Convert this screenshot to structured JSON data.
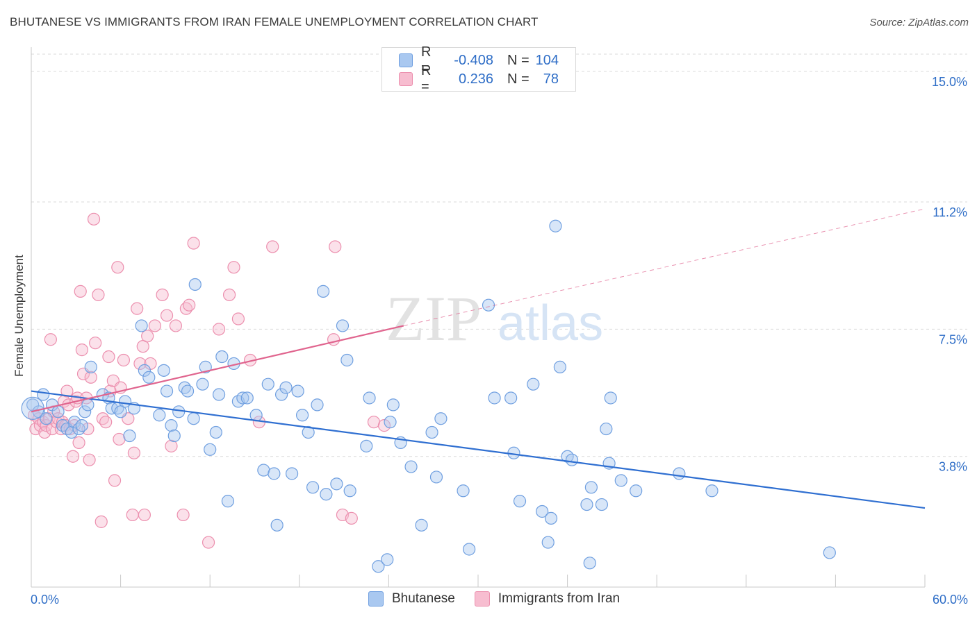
{
  "title": "BHUTANESE VS IMMIGRANTS FROM IRAN FEMALE UNEMPLOYMENT CORRELATION CHART",
  "source": "Source: ZipAtlas.com",
  "watermark": {
    "zip": "ZIP",
    "atlas": "atlas"
  },
  "legend": {
    "rows": [
      {
        "r_label": "R =",
        "r_value": "-0.408",
        "n_label": "N =",
        "n_value": "104"
      },
      {
        "r_label": "R =",
        "r_value": "0.236",
        "n_label": "N =",
        "n_value": "78"
      }
    ]
  },
  "bottom_legend": [
    "Bhutanese",
    "Immigrants from Iran"
  ],
  "colors": {
    "blue_fill": "#a9c8f0",
    "blue_stroke": "#6f9fe0",
    "blue_line": "#2f6fd1",
    "pink_fill": "#f7bdd0",
    "pink_stroke": "#ec8fae",
    "pink_line": "#e0648e",
    "tick_text": "#2f6ec7",
    "grid": "#d9d9d9"
  },
  "chart_data": {
    "type": "scatter",
    "title": "BHUTANESE VS IMMIGRANTS FROM IRAN FEMALE UNEMPLOYMENT CORRELATION CHART",
    "xlabel": "",
    "ylabel": "Female Unemployment",
    "xlim": [
      0,
      60
    ],
    "ylim": [
      0,
      15.5
    ],
    "x_tick_labels": [
      "0.0%",
      "60.0%"
    ],
    "y_ticks": [
      3.8,
      7.5,
      11.2,
      15.0
    ],
    "y_tick_labels": [
      "3.8%",
      "7.5%",
      "11.2%",
      "15.0%"
    ],
    "grid": "horizontal dashed",
    "legend_position": "top-center",
    "series": [
      {
        "name": "Bhutanese",
        "r": -0.408,
        "n": 104,
        "trend": {
          "x": [
            0,
            60
          ],
          "y": [
            5.7,
            2.3
          ],
          "style": "solid"
        },
        "points": [
          [
            0.1,
            5.3
          ],
          [
            0.5,
            5.1
          ],
          [
            0.8,
            5.6
          ],
          [
            1.0,
            4.9
          ],
          [
            1.4,
            5.3
          ],
          [
            1.8,
            5.1
          ],
          [
            2.1,
            4.7
          ],
          [
            2.4,
            4.6
          ],
          [
            2.7,
            4.5
          ],
          [
            2.9,
            4.8
          ],
          [
            3.2,
            4.6
          ],
          [
            3.4,
            4.7
          ],
          [
            3.6,
            5.1
          ],
          [
            3.8,
            5.3
          ],
          [
            4.0,
            6.4
          ],
          [
            4.8,
            5.6
          ],
          [
            5.2,
            5.5
          ],
          [
            5.4,
            5.2
          ],
          [
            5.8,
            5.2
          ],
          [
            6.0,
            5.1
          ],
          [
            6.3,
            5.4
          ],
          [
            6.6,
            4.4
          ],
          [
            6.9,
            5.2
          ],
          [
            7.4,
            7.6
          ],
          [
            7.6,
            6.3
          ],
          [
            7.9,
            6.1
          ],
          [
            8.6,
            5.0
          ],
          [
            8.9,
            6.3
          ],
          [
            9.1,
            5.7
          ],
          [
            9.4,
            4.7
          ],
          [
            9.6,
            4.4
          ],
          [
            9.9,
            5.1
          ],
          [
            10.3,
            5.8
          ],
          [
            10.5,
            5.7
          ],
          [
            10.9,
            4.9
          ],
          [
            11.0,
            8.8
          ],
          [
            11.5,
            5.9
          ],
          [
            11.7,
            6.4
          ],
          [
            12.0,
            4.0
          ],
          [
            12.4,
            4.5
          ],
          [
            12.6,
            5.6
          ],
          [
            12.8,
            6.7
          ],
          [
            13.2,
            2.5
          ],
          [
            13.6,
            6.5
          ],
          [
            13.9,
            5.4
          ],
          [
            14.2,
            5.5
          ],
          [
            14.5,
            5.5
          ],
          [
            15.1,
            5.0
          ],
          [
            15.6,
            3.4
          ],
          [
            15.9,
            5.9
          ],
          [
            16.3,
            3.3
          ],
          [
            16.5,
            1.8
          ],
          [
            16.8,
            5.6
          ],
          [
            17.1,
            5.8
          ],
          [
            17.5,
            3.3
          ],
          [
            17.9,
            5.7
          ],
          [
            18.2,
            5.0
          ],
          [
            18.6,
            4.5
          ],
          [
            18.9,
            2.9
          ],
          [
            19.2,
            5.3
          ],
          [
            19.6,
            8.6
          ],
          [
            19.8,
            2.7
          ],
          [
            20.5,
            3.0
          ],
          [
            20.9,
            7.6
          ],
          [
            21.2,
            6.6
          ],
          [
            21.4,
            2.8
          ],
          [
            22.5,
            4.1
          ],
          [
            22.7,
            5.5
          ],
          [
            23.3,
            0.6
          ],
          [
            23.9,
            0.8
          ],
          [
            24.1,
            4.8
          ],
          [
            24.3,
            5.3
          ],
          [
            24.8,
            4.2
          ],
          [
            25.5,
            3.5
          ],
          [
            26.2,
            1.8
          ],
          [
            26.9,
            4.5
          ],
          [
            27.2,
            3.2
          ],
          [
            27.5,
            4.9
          ],
          [
            29.0,
            2.8
          ],
          [
            29.4,
            1.1
          ],
          [
            30.7,
            8.2
          ],
          [
            31.1,
            5.5
          ],
          [
            32.2,
            5.5
          ],
          [
            32.4,
            3.9
          ],
          [
            32.8,
            2.5
          ],
          [
            33.7,
            5.9
          ],
          [
            34.3,
            2.2
          ],
          [
            34.7,
            1.3
          ],
          [
            34.9,
            2.0
          ],
          [
            35.2,
            10.5
          ],
          [
            35.5,
            6.4
          ],
          [
            36.0,
            3.8
          ],
          [
            36.3,
            3.7
          ],
          [
            37.3,
            2.4
          ],
          [
            37.5,
            0.7
          ],
          [
            37.6,
            2.9
          ],
          [
            38.3,
            2.4
          ],
          [
            38.6,
            4.6
          ],
          [
            38.8,
            3.6
          ],
          [
            38.9,
            5.5
          ],
          [
            39.6,
            3.1
          ],
          [
            40.6,
            2.8
          ],
          [
            43.5,
            3.3
          ],
          [
            45.7,
            2.8
          ],
          [
            53.6,
            1.0
          ]
        ]
      },
      {
        "name": "Immigrants from Iran",
        "r": 0.236,
        "n": 78,
        "trend": {
          "x": [
            0,
            25
          ],
          "y": [
            5.1,
            7.6
          ],
          "style": "solid",
          "extended": {
            "x": [
              25,
              60
            ],
            "y": [
              7.6,
              11.0
            ],
            "style": "dashed"
          }
        },
        "points": [
          [
            0.2,
            5.0
          ],
          [
            0.3,
            4.6
          ],
          [
            0.5,
            4.9
          ],
          [
            0.6,
            4.7
          ],
          [
            0.8,
            4.8
          ],
          [
            0.9,
            4.5
          ],
          [
            1.0,
            4.7
          ],
          [
            1.2,
            4.9
          ],
          [
            1.3,
            7.2
          ],
          [
            1.4,
            4.6
          ],
          [
            1.5,
            5.1
          ],
          [
            1.7,
            4.8
          ],
          [
            1.8,
            4.9
          ],
          [
            2.0,
            4.6
          ],
          [
            2.1,
            4.8
          ],
          [
            2.2,
            5.4
          ],
          [
            2.3,
            4.7
          ],
          [
            2.4,
            5.7
          ],
          [
            2.5,
            5.3
          ],
          [
            2.6,
            4.6
          ],
          [
            2.8,
            3.8
          ],
          [
            2.9,
            4.7
          ],
          [
            3.0,
            5.4
          ],
          [
            3.1,
            5.5
          ],
          [
            3.2,
            4.2
          ],
          [
            3.3,
            8.6
          ],
          [
            3.4,
            6.9
          ],
          [
            3.5,
            6.2
          ],
          [
            3.7,
            5.5
          ],
          [
            3.8,
            4.6
          ],
          [
            3.9,
            3.7
          ],
          [
            4.0,
            6.1
          ],
          [
            4.2,
            10.7
          ],
          [
            4.3,
            7.1
          ],
          [
            4.5,
            8.5
          ],
          [
            4.7,
            1.9
          ],
          [
            4.8,
            4.9
          ],
          [
            5.0,
            4.8
          ],
          [
            5.2,
            6.7
          ],
          [
            5.3,
            5.7
          ],
          [
            5.5,
            6.0
          ],
          [
            5.6,
            3.1
          ],
          [
            5.8,
            9.3
          ],
          [
            5.9,
            4.3
          ],
          [
            6.0,
            5.8
          ],
          [
            6.2,
            6.6
          ],
          [
            6.5,
            4.9
          ],
          [
            6.8,
            2.1
          ],
          [
            6.9,
            3.9
          ],
          [
            7.1,
            8.1
          ],
          [
            7.3,
            6.5
          ],
          [
            7.5,
            7.0
          ],
          [
            7.6,
            2.1
          ],
          [
            7.8,
            7.3
          ],
          [
            8.0,
            6.5
          ],
          [
            8.3,
            7.6
          ],
          [
            8.8,
            8.5
          ],
          [
            9.1,
            7.9
          ],
          [
            9.4,
            4.1
          ],
          [
            9.7,
            7.6
          ],
          [
            10.2,
            2.1
          ],
          [
            10.4,
            8.1
          ],
          [
            10.6,
            8.2
          ],
          [
            10.9,
            10.0
          ],
          [
            11.9,
            1.3
          ],
          [
            12.6,
            7.5
          ],
          [
            13.3,
            8.5
          ],
          [
            13.6,
            9.3
          ],
          [
            13.9,
            7.8
          ],
          [
            14.7,
            6.6
          ],
          [
            15.3,
            4.8
          ],
          [
            16.2,
            9.9
          ],
          [
            20.3,
            7.2
          ],
          [
            20.4,
            9.9
          ],
          [
            20.9,
            2.1
          ],
          [
            21.5,
            2.0
          ],
          [
            23.0,
            4.8
          ],
          [
            23.7,
            4.7
          ]
        ]
      }
    ]
  }
}
